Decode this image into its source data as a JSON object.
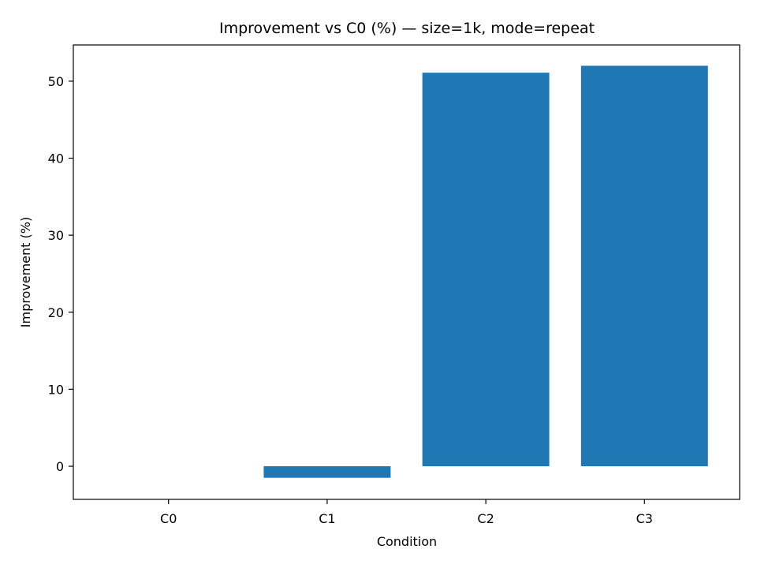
{
  "chart_data": {
    "type": "bar",
    "title": "Improvement vs C0 (%) — size=1k, mode=repeat",
    "xlabel": "Condition",
    "ylabel": "Improvement (%)",
    "categories": [
      "C0",
      "C1",
      "C2",
      "C3"
    ],
    "values": [
      0,
      -1.5,
      51.1,
      52.0
    ],
    "ylim": [
      -4.3,
      54.7
    ],
    "yticks": [
      0,
      10,
      20,
      30,
      40,
      50
    ],
    "grid": false,
    "bar_color": "#1f77b4"
  }
}
